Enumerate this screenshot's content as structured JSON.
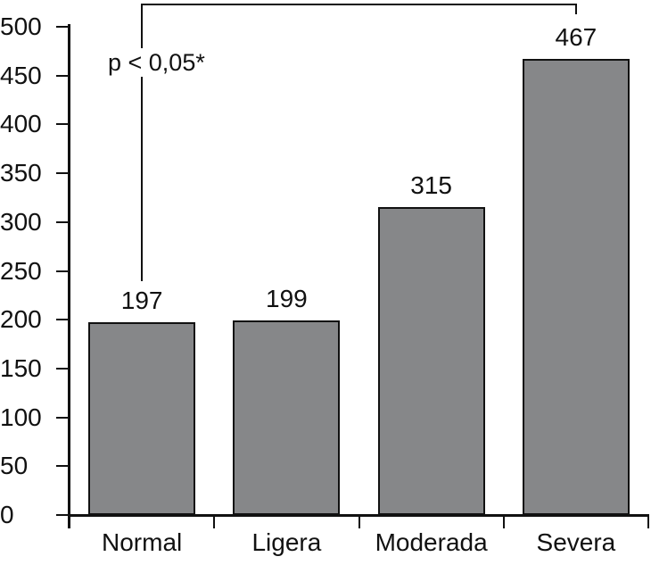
{
  "figure": {
    "background": "#ffffff"
  },
  "chart_data": {
    "type": "bar",
    "categories": [
      "Normal",
      "Ligera",
      "Moderada",
      "Severa"
    ],
    "values": [
      197,
      199,
      315,
      467
    ],
    "title": "",
    "xlabel": "",
    "ylabel": "",
    "ylim": [
      0,
      500
    ],
    "y_ticks": [
      0,
      50,
      100,
      150,
      200,
      250,
      300,
      350,
      400,
      450,
      500
    ],
    "grid": false,
    "legend_position": "none",
    "bar_color": "#868789",
    "bar_border_color": "#111111",
    "axis_color": "#111111",
    "text_color": "#111111",
    "annotation": {
      "text": "p < 0,05*",
      "type": "significance-bracket",
      "connects": [
        "Normal",
        "Severa"
      ]
    }
  }
}
